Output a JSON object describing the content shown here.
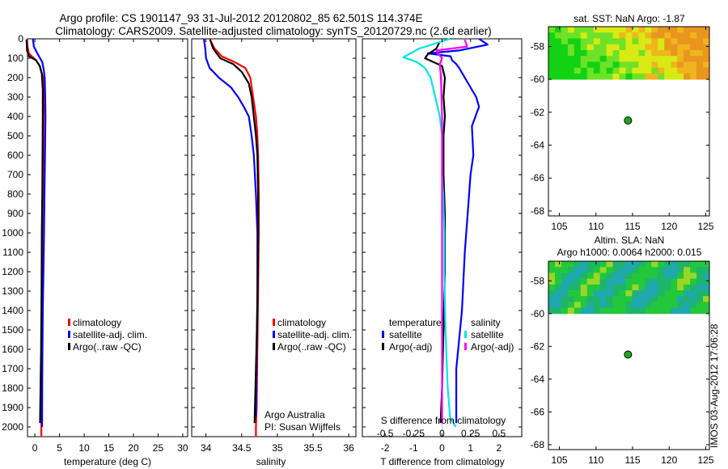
{
  "title": {
    "line1": "Argo profile: CS 1901147_93 31-Jul-2012 20120802_85 62.501S 114.374E",
    "line2": "Climatology: CARS2009. Satellite-adjusted climatology: synTS_20120729.nc (2.6d earlier)"
  },
  "timestamp": "IMOS 03-Aug-2012 17:06:28",
  "colors": {
    "climatology": "#ff0000",
    "satellite_clim": "#0000ff",
    "argo": "#000000",
    "t_satellite": "#0000ff",
    "t_argo": "#000000",
    "s_satellite": "#00e5e5",
    "s_argo": "#ff00ff",
    "float_marker": "#1fa81f"
  },
  "chart_data": [
    {
      "id": "temperature",
      "type": "line",
      "xlabel": "temperature (deg C)",
      "ylabel": "",
      "xlim": [
        -1.5,
        31
      ],
      "ylim": [
        2050,
        0
      ],
      "xticks": [
        0,
        5,
        10,
        15,
        20,
        25,
        30
      ],
      "xtick_labels": [
        "0",
        "5",
        "10",
        "15",
        "20",
        "25",
        "30"
      ],
      "yticks": [
        0,
        100,
        200,
        300,
        400,
        500,
        600,
        700,
        800,
        900,
        1000,
        1100,
        1200,
        1300,
        1400,
        1500,
        1600,
        1700,
        1800,
        1900,
        2000
      ],
      "ytick_labels": [
        "0",
        "100",
        "200",
        "300",
        "400",
        "500",
        "600",
        "700",
        "800",
        "900",
        "1000",
        "1100",
        "1200",
        "1300",
        "1400",
        "1500",
        "1600",
        "1700",
        "1800",
        "1900",
        "2000"
      ],
      "legend": [
        "climatology",
        "satellite-adj. clim.",
        "Argo(..raw -QC)"
      ],
      "legend_position": "center-right",
      "series": [
        {
          "name": "climatology",
          "color": "#ff0000",
          "x": [
            -1.6,
            -1.5,
            -1.2,
            0.2,
            1.0,
            1.3,
            1.7,
            1.8,
            1.75,
            1.7,
            1.6,
            1.5,
            1.4,
            1.35,
            1.3,
            1.3
          ],
          "y": [
            0,
            40,
            75,
            110,
            140,
            170,
            200,
            300,
            400,
            600,
            800,
            1000,
            1300,
            1600,
            1900,
            2050
          ]
        },
        {
          "name": "satellite-adj. clim.",
          "color": "#0000ff",
          "x": [
            -0.4,
            -0.2,
            0.6,
            1.5,
            1.8,
            2.0,
            2.1,
            2.15,
            2.1,
            2.0,
            1.9,
            1.8,
            1.6,
            1.5,
            1.45
          ],
          "y": [
            0,
            40,
            80,
            120,
            160,
            200,
            300,
            400,
            500,
            700,
            900,
            1100,
            1400,
            1700,
            2000
          ]
        },
        {
          "name": "Argo(..raw -QC)",
          "color": "#000000",
          "x": [
            -1.7,
            -1.6,
            -1.2,
            0.2,
            1.0,
            1.4,
            1.6,
            1.6,
            1.55,
            1.5,
            1.4,
            1.35,
            1.25,
            1.15,
            1.05
          ],
          "y": [
            5,
            60,
            90,
            110,
            140,
            180,
            260,
            400,
            600,
            800,
            1000,
            1300,
            1600,
            1800,
            1980
          ]
        }
      ]
    },
    {
      "id": "salinity",
      "type": "line",
      "xlabel": "salinity",
      "ylabel": "",
      "xlim": [
        33.8,
        36.1
      ],
      "ylim": [
        2050,
        0
      ],
      "xticks": [
        34,
        34.5,
        35,
        35.5,
        36
      ],
      "xtick_labels": [
        "34",
        "34.5",
        "35",
        "35.5",
        "36"
      ],
      "legend": [
        "climatology",
        "satellite-adj. clim.",
        "Argo(..raw -QC)"
      ],
      "legend_position": "center-right",
      "annotation": [
        "Argo Australia",
        "PI: Susan Wijffels"
      ],
      "series": [
        {
          "name": "climatology",
          "color": "#ff0000",
          "x": [
            34.05,
            34.12,
            34.22,
            34.4,
            34.55,
            34.62,
            34.66,
            34.7,
            34.72,
            34.73,
            34.74,
            34.74,
            34.73,
            34.72,
            34.71,
            34.7,
            34.7
          ],
          "y": [
            0,
            50,
            90,
            120,
            150,
            200,
            300,
            400,
            500,
            600,
            800,
            1000,
            1300,
            1600,
            1900,
            2000,
            2050
          ]
        },
        {
          "name": "satellite-adj. clim.",
          "color": "#0000ff",
          "x": [
            33.97,
            33.99,
            34.0,
            34.05,
            34.18,
            34.35,
            34.45,
            34.53,
            34.6,
            34.64,
            34.67,
            34.7,
            34.72,
            34.72,
            34.71,
            34.7
          ],
          "y": [
            0,
            50,
            100,
            150,
            200,
            250,
            300,
            350,
            400,
            500,
            600,
            800,
            1000,
            1300,
            1600,
            1950
          ]
        },
        {
          "name": "Argo(..raw -QC)",
          "color": "#000000",
          "x": [
            34.06,
            34.1,
            34.2,
            34.38,
            34.5,
            34.6,
            34.64,
            34.67,
            34.7,
            34.72,
            34.73,
            34.73,
            34.72,
            34.7,
            34.68
          ],
          "y": [
            5,
            50,
            100,
            130,
            170,
            230,
            300,
            400,
            500,
            600,
            800,
            1000,
            1400,
            1700,
            1980
          ]
        }
      ]
    },
    {
      "id": "difference",
      "type": "line",
      "xlabel": "T difference from climatology",
      "ylabel": "",
      "xlim": [
        -2.8,
        2.8
      ],
      "ylim": [
        2050,
        0
      ],
      "xticks": [
        -2,
        -1,
        0,
        1,
        2
      ],
      "xtick_labels": [
        "-2",
        "-1",
        "0",
        "1",
        "2"
      ],
      "top_axis_label": "S difference from climatology",
      "top_ticks": [
        -0.5,
        -0.25,
        0,
        0.25,
        0.5
      ],
      "top_tick_labels": [
        "-0.5",
        "-0.25",
        "0",
        "0.25",
        "0.5"
      ],
      "top_scale_T_per_S": 4,
      "legend_titles": [
        "temperature",
        "salinity"
      ],
      "legend": [
        "satellite",
        "Argo(-adj)",
        "satellite",
        "Argo(-adj)"
      ],
      "legend_position": "center",
      "series": [
        {
          "name": "temperature satellite",
          "color": "#0000ff",
          "units": "degC",
          "x": [
            1.3,
            1.6,
            0.6,
            -0.5,
            0.3,
            0.35,
            0.5,
            0.6,
            0.8,
            1.0,
            1.2,
            1.3,
            1.05,
            1.1,
            1.0,
            0.9,
            0.8,
            0.7,
            0.5,
            0.5
          ],
          "y": [
            0,
            30,
            60,
            75,
            90,
            110,
            130,
            150,
            200,
            250,
            300,
            350,
            450,
            600,
            700,
            900,
            1100,
            1400,
            1700,
            1980
          ]
        },
        {
          "name": "temperature Argo(-adj)",
          "color": "#000000",
          "units": "degC",
          "x": [
            -0.1,
            -0.2,
            -0.5,
            -0.6,
            -0.3,
            0.0,
            0.1,
            0.05,
            0.1,
            0.05,
            0.05,
            0.1,
            0.1,
            0.05,
            0.0,
            -0.05
          ],
          "y": [
            20,
            50,
            80,
            100,
            120,
            140,
            200,
            300,
            400,
            500,
            700,
            900,
            1200,
            1500,
            1800,
            1980
          ]
        },
        {
          "name": "salinity satellite",
          "color": "#00e5e5",
          "units": "psu",
          "x": [
            0.07,
            -0.2,
            -0.34,
            -0.22,
            -0.15,
            -0.1,
            -0.06,
            -0.02,
            0.0,
            0.0,
            0.0,
            0.01,
            0.02,
            0.02,
            0.03,
            0.05,
            0.07,
            0.12
          ],
          "y": [
            0,
            50,
            95,
            120,
            150,
            200,
            300,
            400,
            500,
            600,
            700,
            800,
            1000,
            1200,
            1500,
            1800,
            1950,
            2000
          ]
        },
        {
          "name": "salinity Argo(-adj)",
          "color": "#ff00ff",
          "units": "psu",
          "x": [
            0.2,
            0.22,
            -0.05,
            -0.03,
            0.0,
            -0.02,
            -0.01,
            0.0,
            0.0,
            0.0,
            0.0,
            0.0,
            0.0,
            0.0
          ],
          "y": [
            5,
            40,
            60,
            80,
            100,
            130,
            200,
            400,
            600,
            800,
            1000,
            1400,
            1700,
            1980
          ]
        }
      ]
    },
    {
      "id": "sst_map",
      "type": "heatmap",
      "title": "sat. SST: NaN Argo: -1.87",
      "xlim": [
        103.5,
        125.5
      ],
      "ylim": [
        -68.3,
        -56.8
      ],
      "xticks": [
        105,
        110,
        115,
        120,
        125
      ],
      "xtick_labels": [
        "105",
        "110",
        "115",
        "120",
        "125"
      ],
      "yticks": [
        -58,
        -60,
        -62,
        -64,
        -66,
        -68
      ],
      "ytick_labels": [
        "-58",
        "-60",
        "-62",
        "-64",
        "-66",
        "-68"
      ],
      "data_extent_lat": [
        -60,
        -56.8
      ],
      "colormap": [
        "#12d214",
        "#6ee226",
        "#d8ea14",
        "#f0b41e",
        "#e8961e"
      ],
      "float": {
        "lon": 114.374,
        "lat": -62.501
      }
    },
    {
      "id": "sla_map",
      "type": "heatmap",
      "title_lines": [
        "Altim. SLA: NaN",
        "Argo h1000: 0.0064 h2000: 0.015"
      ],
      "xlim": [
        103.5,
        125.5
      ],
      "ylim": [
        -68.3,
        -56.8
      ],
      "xticks": [
        105,
        110,
        115,
        120,
        125
      ],
      "xtick_labels": [
        "105",
        "110",
        "115",
        "120",
        "125"
      ],
      "yticks": [
        -58,
        -60,
        -62,
        -64,
        -66,
        -68
      ],
      "ytick_labels": [
        "-58",
        "-60",
        "-62",
        "-64",
        "-66",
        "-68"
      ],
      "data_extent_lat": [
        -60,
        -56.8
      ],
      "colormap": [
        "#20a8b0",
        "#1eb46a",
        "#22c83a",
        "#9ad628",
        "#d8e81a"
      ],
      "float": {
        "lon": 114.374,
        "lat": -62.501
      }
    }
  ]
}
